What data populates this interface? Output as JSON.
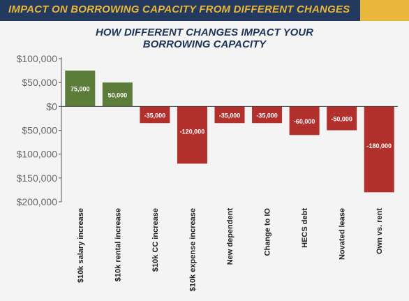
{
  "header": {
    "banner_title": "IMPACT ON BORROWING CAPACITY FROM DIFFERENT CHANGES",
    "banner_color": "#233a5e",
    "accent_color": "#e8b63a"
  },
  "chart_data": {
    "type": "bar",
    "title_line1": "HOW DIFFERENT CHANGES IMPACT YOUR",
    "title_line2": "BORROWING CAPACITY",
    "categories": [
      "$10k salary increase",
      "$10k rental increase",
      "$10k CC increase",
      "$10k expense increase",
      "New dependent",
      "Change to IO",
      "HECS debt",
      "Novated lease",
      "Own vs. rent"
    ],
    "values": [
      75000,
      50000,
      -35000,
      -120000,
      -35000,
      -35000,
      -60000,
      -50000,
      -180000
    ],
    "data_labels": [
      "75,000",
      "50,000",
      "-35,000",
      "-120,000",
      "-35,000",
      "-35,000",
      "-60,000",
      "-50,000",
      "-180,000"
    ],
    "y_ticks": [
      100000,
      50000,
      0,
      -50000,
      -100000,
      -150000,
      -200000
    ],
    "y_tick_labels": [
      "$100,000",
      "$50,000",
      "$0",
      "$50,000",
      "$100,000",
      "$150,000",
      "$200,000"
    ],
    "ylim": [
      -200000,
      100000
    ],
    "grid": false,
    "positive_color": "#5c7d3a",
    "negative_color": "#b1302c",
    "xlabel": "",
    "ylabel": ""
  }
}
